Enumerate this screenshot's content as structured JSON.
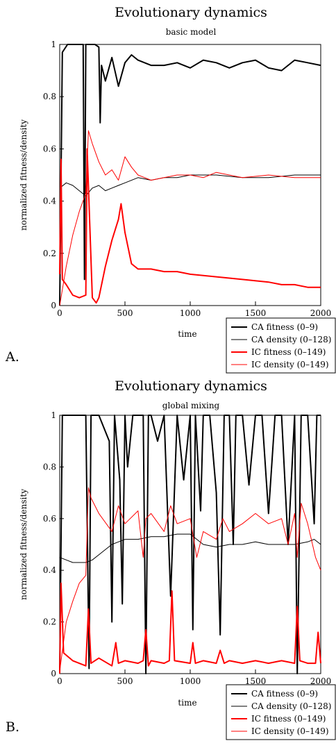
{
  "chart_data": [
    {
      "type": "line",
      "panel_label": "A.",
      "title": "Evolutionary dynamics",
      "subtitle": "basic model",
      "xlabel": "time",
      "ylabel": "normalized fitness/density",
      "xlim": [
        0,
        2000
      ],
      "ylim": [
        0,
        1
      ],
      "xticks": [
        0,
        500,
        1000,
        1500,
        2000
      ],
      "yticks": [
        0,
        0.2,
        0.4,
        0.6,
        0.8,
        1
      ],
      "grid": false,
      "legend_position": "bottom-right outside",
      "series": [
        {
          "name": "CA fitness (0–9)",
          "color": "#000000",
          "width": 2,
          "x": [
            0,
            20,
            60,
            120,
            180,
            190,
            200,
            210,
            220,
            240,
            270,
            300,
            310,
            320,
            350,
            400,
            450,
            500,
            550,
            600,
            700,
            800,
            900,
            1000,
            1100,
            1200,
            1300,
            1400,
            1500,
            1600,
            1700,
            1800,
            1900,
            2000
          ],
          "values": [
            0.0,
            0.97,
            1.0,
            1.0,
            1.0,
            0.1,
            1.0,
            1.0,
            1.0,
            1.0,
            1.0,
            0.99,
            0.7,
            0.92,
            0.86,
            0.95,
            0.84,
            0.93,
            0.96,
            0.94,
            0.92,
            0.92,
            0.93,
            0.91,
            0.94,
            0.93,
            0.91,
            0.93,
            0.94,
            0.91,
            0.9,
            0.94,
            0.93,
            0.92
          ]
        },
        {
          "name": "CA density (0–128)",
          "color": "#000000",
          "width": 1,
          "x": [
            0,
            50,
            100,
            150,
            200,
            250,
            300,
            350,
            400,
            450,
            500,
            600,
            700,
            800,
            900,
            1000,
            1200,
            1400,
            1600,
            1800,
            2000
          ],
          "values": [
            0.45,
            0.47,
            0.46,
            0.44,
            0.42,
            0.45,
            0.46,
            0.44,
            0.45,
            0.46,
            0.47,
            0.49,
            0.48,
            0.49,
            0.49,
            0.5,
            0.5,
            0.49,
            0.49,
            0.5,
            0.5
          ]
        },
        {
          "name": "IC fitness (0–149)",
          "color": "#ff0000",
          "width": 2,
          "x": [
            0,
            10,
            20,
            50,
            100,
            150,
            200,
            210,
            250,
            280,
            300,
            350,
            400,
            450,
            470,
            500,
            550,
            600,
            700,
            800,
            900,
            1000,
            1200,
            1400,
            1600,
            1700,
            1800,
            1900,
            2000
          ],
          "values": [
            0.12,
            0.56,
            0.1,
            0.08,
            0.04,
            0.03,
            0.04,
            0.6,
            0.03,
            0.01,
            0.03,
            0.15,
            0.25,
            0.33,
            0.39,
            0.28,
            0.16,
            0.14,
            0.14,
            0.13,
            0.13,
            0.12,
            0.11,
            0.1,
            0.09,
            0.08,
            0.08,
            0.07,
            0.07
          ]
        },
        {
          "name": "IC density (0–149)",
          "color": "#ff0000",
          "width": 1,
          "x": [
            0,
            50,
            100,
            150,
            200,
            220,
            250,
            300,
            350,
            400,
            450,
            500,
            550,
            600,
            700,
            800,
            900,
            1000,
            1100,
            1200,
            1400,
            1600,
            1800,
            2000
          ],
          "values": [
            0.0,
            0.15,
            0.27,
            0.36,
            0.43,
            0.67,
            0.62,
            0.55,
            0.5,
            0.52,
            0.48,
            0.57,
            0.53,
            0.5,
            0.48,
            0.49,
            0.5,
            0.5,
            0.49,
            0.51,
            0.49,
            0.5,
            0.49,
            0.49
          ]
        }
      ]
    },
    {
      "type": "line",
      "panel_label": "B.",
      "title": "Evolutionary dynamics",
      "subtitle": "global mixing",
      "xlabel": "time",
      "ylabel": "normalized fitness/density",
      "xlim": [
        0,
        2000
      ],
      "ylim": [
        0,
        1
      ],
      "xticks": [
        0,
        500,
        1000,
        1500,
        2000
      ],
      "yticks": [
        0,
        0.2,
        0.4,
        0.6,
        0.8,
        1
      ],
      "grid": false,
      "legend_position": "bottom-right outside",
      "series": [
        {
          "name": "CA fitness (0–9)",
          "color": "#000000",
          "width": 2,
          "x": [
            0,
            20,
            100,
            200,
            225,
            240,
            250,
            300,
            380,
            400,
            420,
            460,
            480,
            500,
            520,
            560,
            600,
            640,
            660,
            680,
            700,
            750,
            800,
            850,
            900,
            950,
            1000,
            1020,
            1040,
            1080,
            1100,
            1150,
            1200,
            1230,
            1260,
            1300,
            1330,
            1350,
            1400,
            1450,
            1500,
            1550,
            1600,
            1650,
            1700,
            1750,
            1800,
            1820,
            1850,
            1900,
            1950,
            1970,
            2000
          ],
          "values": [
            0.0,
            1.0,
            1.0,
            1.0,
            0.02,
            1.0,
            1.0,
            1.0,
            0.9,
            0.2,
            1.0,
            0.75,
            0.27,
            1.0,
            0.8,
            1.0,
            1.0,
            1.0,
            0.0,
            1.0,
            1.0,
            0.9,
            1.0,
            0.3,
            1.0,
            0.75,
            1.0,
            0.17,
            1.0,
            0.63,
            1.0,
            1.0,
            0.7,
            0.15,
            1.0,
            1.0,
            0.5,
            1.0,
            1.0,
            0.73,
            1.0,
            1.0,
            0.62,
            1.0,
            1.0,
            0.5,
            1.0,
            0.0,
            1.0,
            1.0,
            0.58,
            1.0,
            1.0
          ]
        },
        {
          "name": "CA density (0–128)",
          "color": "#000000",
          "width": 1,
          "x": [
            0,
            50,
            100,
            200,
            250,
            300,
            350,
            400,
            450,
            500,
            600,
            700,
            800,
            900,
            1000,
            1100,
            1200,
            1300,
            1400,
            1500,
            1600,
            1700,
            1800,
            1900,
            1950,
            2000
          ],
          "values": [
            0.45,
            0.44,
            0.43,
            0.43,
            0.44,
            0.46,
            0.48,
            0.5,
            0.51,
            0.52,
            0.52,
            0.53,
            0.53,
            0.54,
            0.54,
            0.5,
            0.49,
            0.5,
            0.5,
            0.51,
            0.5,
            0.5,
            0.5,
            0.51,
            0.52,
            0.5
          ]
        },
        {
          "name": "IC fitness (0–149)",
          "color": "#ff0000",
          "width": 2,
          "x": [
            0,
            10,
            30,
            100,
            200,
            220,
            240,
            300,
            400,
            430,
            450,
            500,
            600,
            640,
            660,
            680,
            700,
            800,
            840,
            860,
            880,
            1000,
            1020,
            1040,
            1100,
            1200,
            1230,
            1260,
            1300,
            1400,
            1500,
            1600,
            1700,
            1800,
            1820,
            1840,
            1900,
            1960,
            1980,
            2000
          ],
          "values": [
            0.0,
            0.35,
            0.08,
            0.05,
            0.03,
            0.25,
            0.04,
            0.06,
            0.03,
            0.12,
            0.04,
            0.05,
            0.04,
            0.05,
            0.17,
            0.03,
            0.05,
            0.04,
            0.05,
            0.32,
            0.05,
            0.04,
            0.12,
            0.04,
            0.05,
            0.04,
            0.09,
            0.04,
            0.05,
            0.04,
            0.05,
            0.04,
            0.05,
            0.04,
            0.26,
            0.05,
            0.04,
            0.04,
            0.16,
            0.04
          ]
        },
        {
          "name": "IC density (0–149)",
          "color": "#ff0000",
          "width": 1,
          "x": [
            0,
            50,
            100,
            150,
            200,
            220,
            240,
            300,
            400,
            450,
            500,
            600,
            640,
            660,
            700,
            800,
            850,
            900,
            1000,
            1050,
            1100,
            1200,
            1250,
            1300,
            1400,
            1500,
            1600,
            1700,
            1750,
            1800,
            1820,
            1850,
            1900,
            1960,
            2000
          ],
          "values": [
            0.01,
            0.2,
            0.28,
            0.35,
            0.38,
            0.72,
            0.68,
            0.62,
            0.55,
            0.65,
            0.58,
            0.63,
            0.45,
            0.6,
            0.62,
            0.55,
            0.65,
            0.58,
            0.6,
            0.45,
            0.55,
            0.52,
            0.6,
            0.55,
            0.58,
            0.62,
            0.58,
            0.6,
            0.5,
            0.62,
            0.45,
            0.66,
            0.58,
            0.45,
            0.4
          ]
        }
      ]
    }
  ]
}
